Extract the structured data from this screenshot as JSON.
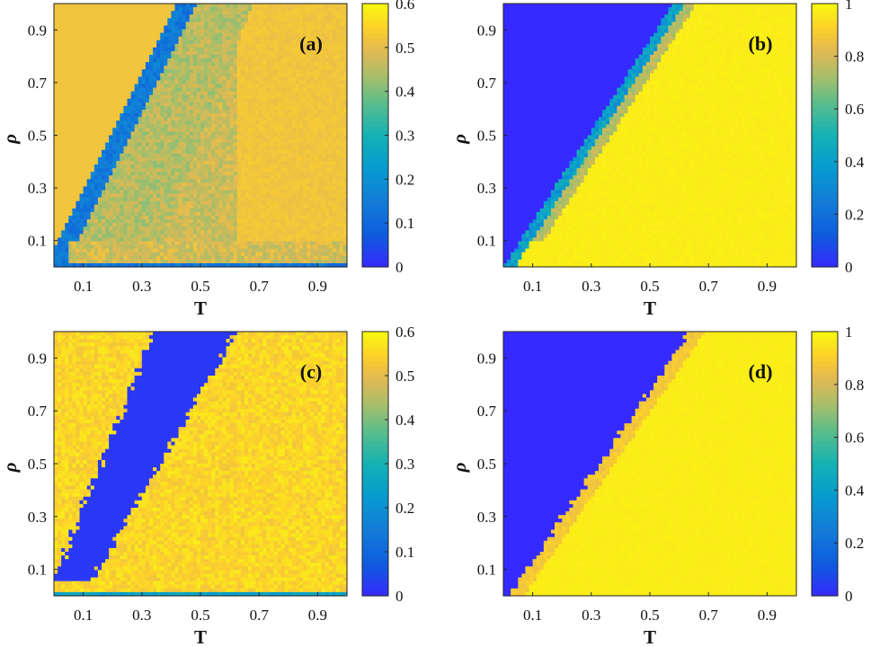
{
  "chart_data": [
    {
      "type": "heatmap",
      "panel_label": "(a)",
      "xlabel": "T",
      "ylabel": "ρ",
      "xticks": [
        "0.1",
        "0.3",
        "0.5",
        "0.7",
        "0.9"
      ],
      "yticks": [
        "0.1",
        "0.3",
        "0.5",
        "0.7",
        "0.9"
      ],
      "xlim": [
        0,
        1
      ],
      "ylim": [
        0,
        1
      ],
      "colorbar": {
        "min": 0,
        "max": 0.6,
        "ticks": [
          "0",
          "0.1",
          "0.2",
          "0.3",
          "0.4",
          "0.5",
          "0.6"
        ]
      },
      "colormap": "parula",
      "regions": {
        "background": 0.52,
        "band_low": 0.05,
        "band_high": 0.35,
        "band_slope_low": 0.9,
        "band_slope_high": 0.75,
        "interior": 0.45
      }
    },
    {
      "type": "heatmap",
      "panel_label": "(b)",
      "xlabel": "T",
      "ylabel": "ρ",
      "xticks": [
        "0.1",
        "0.3",
        "0.5",
        "0.7",
        "0.9"
      ],
      "yticks": [
        "0.1",
        "0.3",
        "0.5",
        "0.7",
        "0.9"
      ],
      "xlim": [
        0,
        1
      ],
      "ylim": [
        0,
        1
      ],
      "colorbar": {
        "min": 0,
        "max": 1.0,
        "ticks": [
          "0",
          "0.2",
          "0.4",
          "0.6",
          "0.8",
          "1"
        ]
      },
      "colormap": "parula",
      "regions": {
        "low_value": 0.0,
        "high_value": 1.0,
        "edge_value": 0.8
      }
    },
    {
      "type": "heatmap",
      "panel_label": "(c)",
      "xlabel": "T",
      "ylabel": "ρ",
      "xticks": [
        "0.1",
        "0.3",
        "0.5",
        "0.7",
        "0.9"
      ],
      "yticks": [
        "0.1",
        "0.3",
        "0.5",
        "0.7",
        "0.9"
      ],
      "xlim": [
        0,
        1
      ],
      "ylim": [
        0,
        1
      ],
      "colorbar": {
        "min": 0,
        "max": 0.6,
        "ticks": [
          "0",
          "0.1",
          "0.2",
          "0.3",
          "0.4",
          "0.5",
          "0.6"
        ]
      },
      "colormap": "parula",
      "regions": {
        "background": 0.55,
        "band_value": 0.02
      }
    },
    {
      "type": "heatmap",
      "panel_label": "(d)",
      "xlabel": "T",
      "ylabel": "ρ",
      "xticks": [
        "0.1",
        "0.3",
        "0.5",
        "0.7",
        "0.9"
      ],
      "yticks": [
        "0.1",
        "0.3",
        "0.5",
        "0.7",
        "0.9"
      ],
      "xlim": [
        0,
        1
      ],
      "ylim": [
        0,
        1
      ],
      "colorbar": {
        "min": 0,
        "max": 1.0,
        "ticks": [
          "0",
          "0.2",
          "0.4",
          "0.6",
          "0.8",
          "1"
        ]
      },
      "colormap": "parula",
      "regions": {
        "low_value": 0.0,
        "high_value": 1.0
      }
    }
  ]
}
